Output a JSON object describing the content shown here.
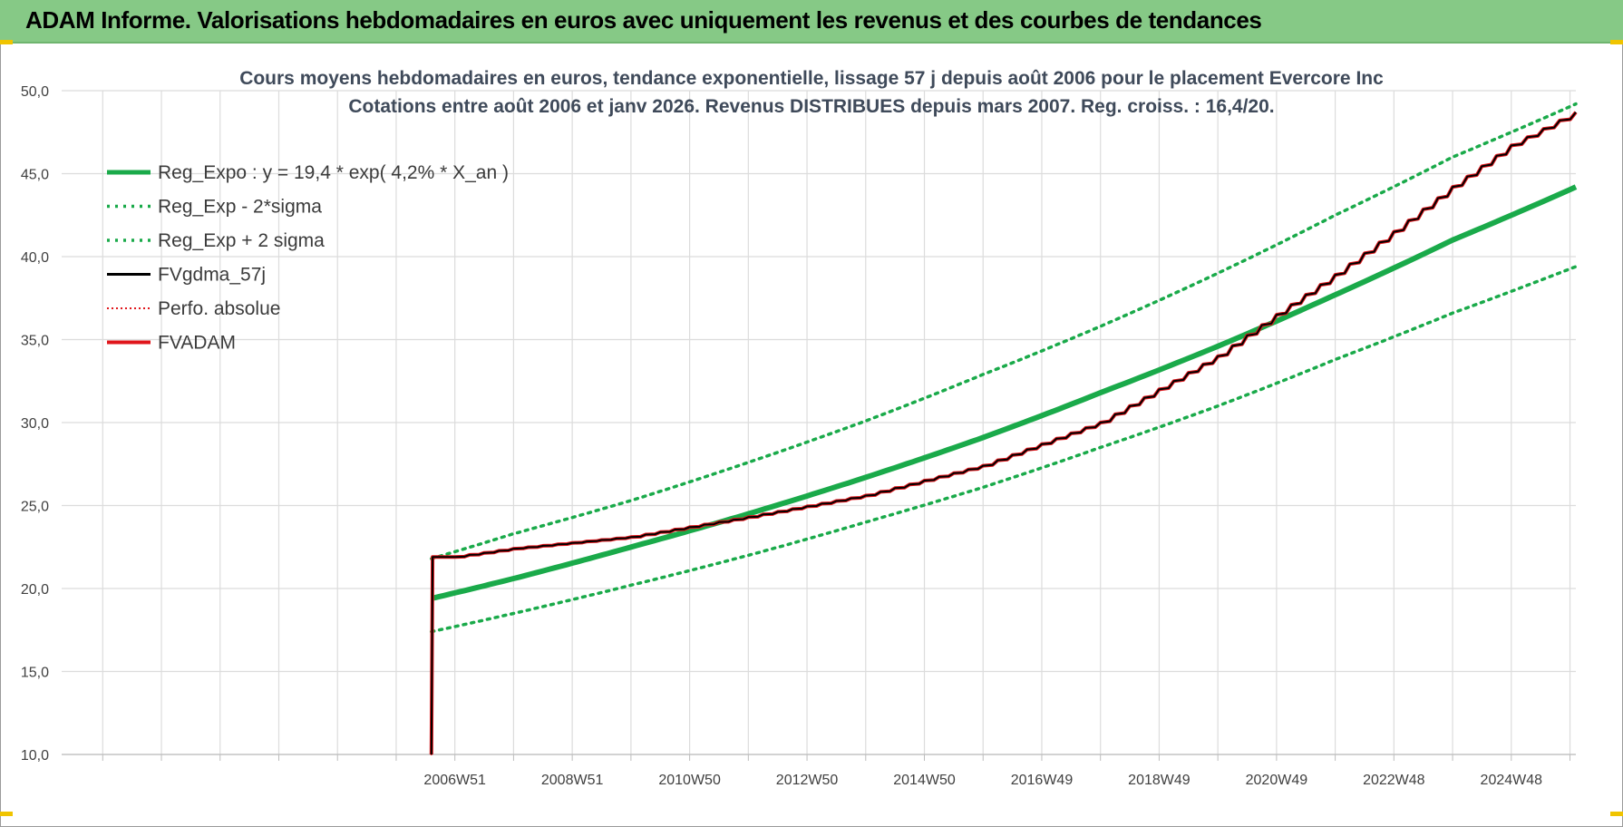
{
  "banner": {
    "title": "ADAM Informe. Valorisations hebdomadaires en euros avec uniquement les revenus et des courbes de tendances"
  },
  "colors": {
    "banner_bg": "#86c986",
    "green": "#1aaa4a",
    "red": "#e0161b",
    "black": "#000000",
    "grid": "#dcdcdc"
  },
  "chart_data": {
    "type": "line",
    "title": "Cours moyens hebdomadaires en euros, tendance exponentielle, lissage 57 j depuis août 2006 pour le placement Evercore Inc",
    "subtitle": "Cotations entre août 2006 et janv 2026. Revenus DISTRIBUES depuis mars 2007. Reg. croiss. : 16,4/20.",
    "xlabel": "",
    "ylabel": "",
    "ylim": [
      10,
      50
    ],
    "y_ticks": [
      "10,0",
      "15,0",
      "20,0",
      "25,0",
      "30,0",
      "35,0",
      "40,0",
      "45,0",
      "50,0"
    ],
    "x_ticks": [
      "2006W51",
      "2008W51",
      "2010W50",
      "2012W50",
      "2014W50",
      "2016W49",
      "2018W49",
      "2020W49",
      "2022W48",
      "2024W48"
    ],
    "x_tick_years": [
      2007.0,
      2009.0,
      2011.0,
      2013.0,
      2015.0,
      2017.0,
      2019.0,
      2021.0,
      2023.0,
      2025.0
    ],
    "xlim": [
      2000.3,
      2026.1
    ],
    "grid": true,
    "legend_position": "top-left",
    "series": [
      {
        "name": "Reg_Expo : y = 19,4 * exp( 4,2% *  X_an )",
        "style": "solid-green",
        "x": [
          2006.6,
          2008.0,
          2010.0,
          2012.0,
          2014.0,
          2016.0,
          2018.0,
          2020.0,
          2022.0,
          2024.0,
          2026.1
        ],
        "values": [
          19.4,
          20.6,
          22.5,
          24.5,
          26.7,
          29.1,
          31.8,
          34.6,
          37.7,
          41.0,
          44.2
        ]
      },
      {
        "name": "Reg_Exp - 2*sigma",
        "style": "dotted-green",
        "x": [
          2006.6,
          2008.0,
          2010.0,
          2012.0,
          2014.0,
          2016.0,
          2018.0,
          2020.0,
          2022.0,
          2024.0,
          2026.1
        ],
        "values": [
          17.4,
          18.5,
          20.2,
          22.0,
          24.0,
          26.1,
          28.5,
          31.0,
          33.8,
          36.6,
          39.4
        ]
      },
      {
        "name": "Reg_Exp + 2 sigma",
        "style": "dotted-green",
        "x": [
          2006.6,
          2008.0,
          2010.0,
          2012.0,
          2014.0,
          2016.0,
          2018.0,
          2020.0,
          2022.0,
          2024.0,
          2026.1
        ],
        "values": [
          21.8,
          23.3,
          25.3,
          27.6,
          30.1,
          32.9,
          35.8,
          39.0,
          42.5,
          46.0,
          49.2
        ]
      },
      {
        "name": "FVgdma_57j",
        "style": "solid-black",
        "x": [
          2006.6,
          2006.62,
          2007.0,
          2008.0,
          2010.0,
          2012.0,
          2014.0,
          2016.0,
          2018.0,
          2020.0,
          2021.0,
          2022.0,
          2023.0,
          2024.0,
          2025.0,
          2026.1
        ],
        "values": [
          10.0,
          21.9,
          21.9,
          22.4,
          23.1,
          24.3,
          25.6,
          27.4,
          30.0,
          34.0,
          36.5,
          38.9,
          41.5,
          44.2,
          46.7,
          48.7
        ]
      },
      {
        "name": "Perfo. absolue",
        "style": "dotted-red",
        "x": [
          2006.6,
          2006.62,
          2007.0,
          2008.0,
          2010.0,
          2012.0,
          2014.0,
          2016.0,
          2018.0,
          2020.0,
          2021.0,
          2022.0,
          2023.0,
          2024.0,
          2025.0,
          2026.1
        ],
        "values": [
          10.0,
          21.9,
          21.9,
          22.4,
          23.1,
          24.3,
          25.6,
          27.4,
          30.0,
          34.0,
          36.5,
          38.9,
          41.5,
          44.2,
          46.7,
          48.7
        ]
      },
      {
        "name": "FVADAM",
        "style": "solid-red",
        "x": [
          2006.6,
          2006.62,
          2007.0,
          2008.0,
          2010.0,
          2012.0,
          2014.0,
          2016.0,
          2018.0,
          2020.0,
          2021.0,
          2022.0,
          2023.0,
          2024.0,
          2025.0,
          2026.1
        ],
        "values": [
          10.0,
          21.9,
          21.9,
          22.4,
          23.1,
          24.3,
          25.6,
          27.4,
          30.0,
          34.0,
          36.5,
          38.9,
          41.5,
          44.2,
          46.7,
          48.7
        ]
      }
    ]
  }
}
